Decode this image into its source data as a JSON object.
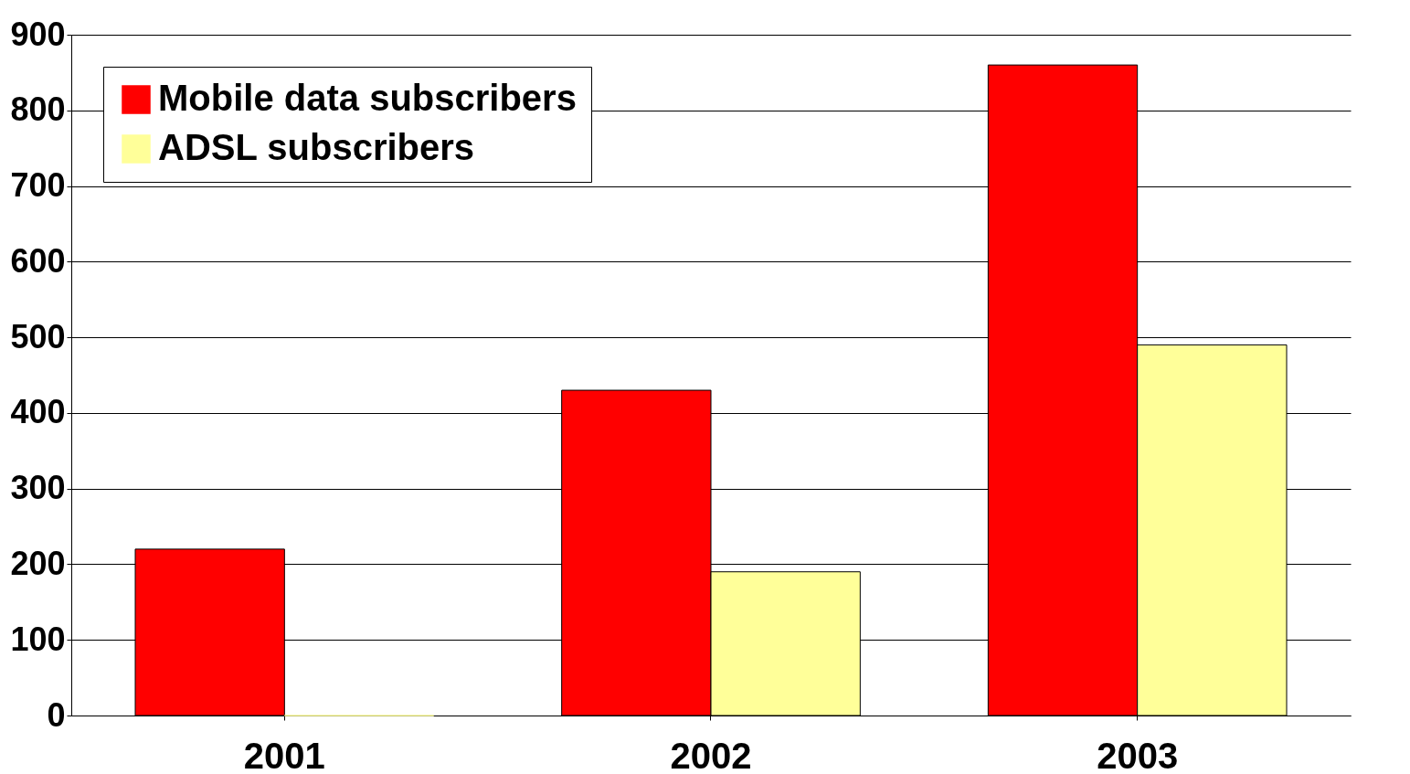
{
  "chart_data": {
    "type": "bar",
    "categories": [
      "2001",
      "2002",
      "2003"
    ],
    "series": [
      {
        "name": "Mobile data subscribers",
        "color": "#ff0000",
        "values": [
          220,
          430,
          860
        ]
      },
      {
        "name": "ADSL subscribers",
        "color": "#ffff99",
        "values": [
          0,
          190,
          490
        ]
      }
    ],
    "ylim": [
      0,
      900
    ],
    "yticks": [
      0,
      100,
      200,
      300,
      400,
      500,
      600,
      700,
      800,
      900
    ],
    "grid": "y",
    "legend": "top left"
  }
}
